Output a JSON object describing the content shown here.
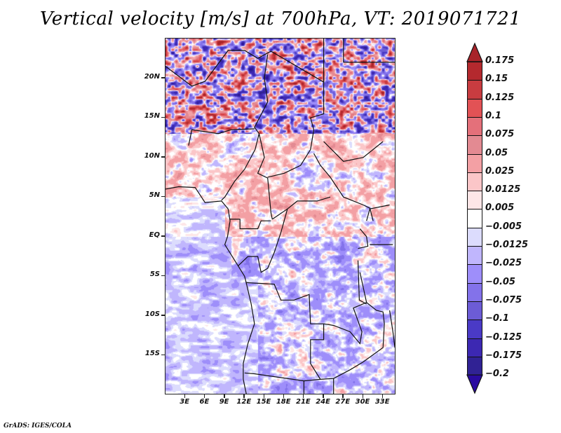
{
  "chart_data": {
    "type": "heatmap",
    "title": "Vertical velocity [m/s] at 700hPa, VT: 2019071721",
    "variable": "Vertical velocity",
    "units": "m/s",
    "level": "700hPa",
    "valid_time": "2019071721",
    "xlabel": "",
    "ylabel": "",
    "x_range_deg_east": [
      0,
      35
    ],
    "y_range_deg_north": [
      -20,
      25
    ],
    "x_ticks": [
      "3E",
      "6E",
      "9E",
      "12E",
      "15E",
      "18E",
      "21E",
      "24E",
      "27E",
      "30E",
      "33E"
    ],
    "x_tick_values": [
      3,
      6,
      9,
      12,
      15,
      18,
      21,
      24,
      27,
      30,
      33
    ],
    "y_ticks": [
      "20N",
      "15N",
      "10N",
      "5N",
      "EQ",
      "5S",
      "10S",
      "15S"
    ],
    "y_tick_values": [
      20,
      15,
      10,
      5,
      0,
      -5,
      -10,
      -15
    ],
    "grid": false,
    "legend_position": "right",
    "colorbar": {
      "labels": [
        "0.175",
        "0.15",
        "0.125",
        "0.1",
        "0.075",
        "0.05",
        "0.025",
        "0.0125",
        "0.005",
        "-0.005",
        "-0.0125",
        "-0.025",
        "-0.05",
        "-0.075",
        "-0.1",
        "-0.125",
        "-0.175",
        "-0.2"
      ],
      "levels": [
        0.175,
        0.15,
        0.125,
        0.1,
        0.075,
        0.05,
        0.025,
        0.0125,
        0.005,
        -0.005,
        -0.0125,
        -0.025,
        -0.05,
        -0.075,
        -0.1,
        -0.125,
        -0.175,
        -0.2
      ],
      "top_arrow_color": "#a8242a",
      "bottom_arrow_color": "#2a0aa0",
      "segment_colors": [
        "#b4292e",
        "#c83c40",
        "#e25255",
        "#e4707a",
        "#e38a92",
        "#f3a0a4",
        "#fbc6c8",
        "#fde6e7",
        "#ffffff",
        "#dcdcfd",
        "#c0b6fd",
        "#9e8efa",
        "#8372ea",
        "#6c5cd6",
        "#4a3ac6",
        "#3c28b2",
        "#302294"
      ]
    },
    "description": "Gridded field over Central Africa; strong alternating positive (red) and negative (blue) values over the Sahara north of 12N, weaker mostly positive values over central Africa 0-10N, weak negative values over the Atlantic and Angola/southern region."
  },
  "footer": "GrADS: IGES/COLA"
}
